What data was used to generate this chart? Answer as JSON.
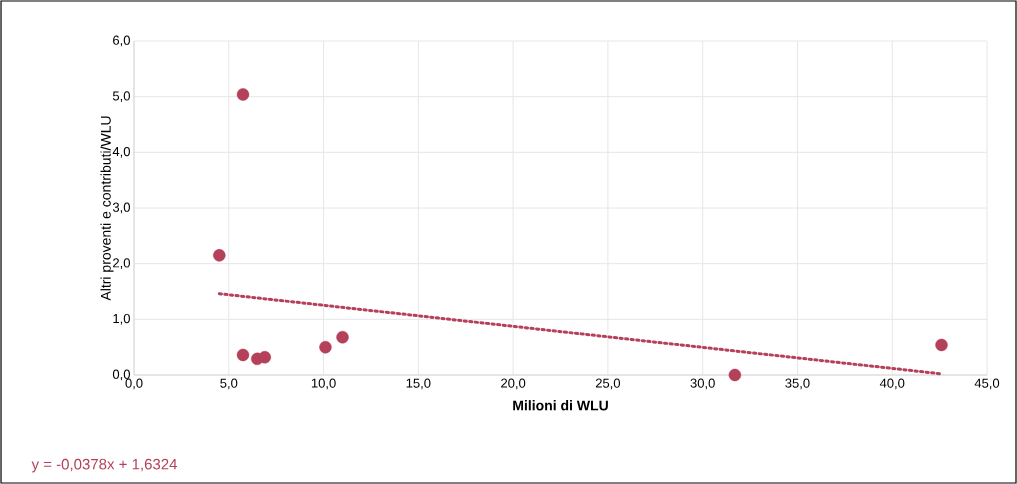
{
  "chart_data": {
    "type": "scatter",
    "xlabel": "Milioni di WLU",
    "ylabel": "Altri proventi e contributi/WLU",
    "xlim": [
      0,
      45
    ],
    "ylim": [
      0,
      6
    ],
    "xticks": [
      {
        "value": 0,
        "label": "0,0"
      },
      {
        "value": 5,
        "label": "5,0"
      },
      {
        "value": 10,
        "label": "10,0"
      },
      {
        "value": 15,
        "label": "15,0"
      },
      {
        "value": 20,
        "label": "20,0"
      },
      {
        "value": 25,
        "label": "25,0"
      },
      {
        "value": 30,
        "label": "30,0"
      },
      {
        "value": 35,
        "label": "35,0"
      },
      {
        "value": 40,
        "label": "40,0"
      },
      {
        "value": 45,
        "label": "45,0"
      }
    ],
    "yticks": [
      {
        "value": 0,
        "label": "0,0"
      },
      {
        "value": 1,
        "label": "1,0"
      },
      {
        "value": 2,
        "label": "2,0"
      },
      {
        "value": 3,
        "label": "3,0"
      },
      {
        "value": 4,
        "label": "4,0"
      },
      {
        "value": 5,
        "label": "5,0"
      },
      {
        "value": 6,
        "label": "6,0"
      }
    ],
    "grid": true,
    "marker": "circle",
    "series": [
      {
        "color": "#b5405a",
        "x": [
          4.5,
          5.75,
          5.75,
          6.5,
          6.9,
          10.1,
          11.0,
          31.7,
          42.6
        ],
        "values": [
          2.15,
          5.04,
          0.36,
          0.29,
          0.32,
          0.5,
          0.68,
          0.0,
          0.54
        ]
      },
      {
        "type": "line",
        "color": "#b5405a",
        "marker": "none",
        "line_style": "dotted",
        "x": [
          4.5,
          42.6
        ],
        "values": [
          1.46,
          0.02
        ]
      }
    ],
    "annotations": [
      "y = -0,0378x + 1,6324"
    ]
  }
}
